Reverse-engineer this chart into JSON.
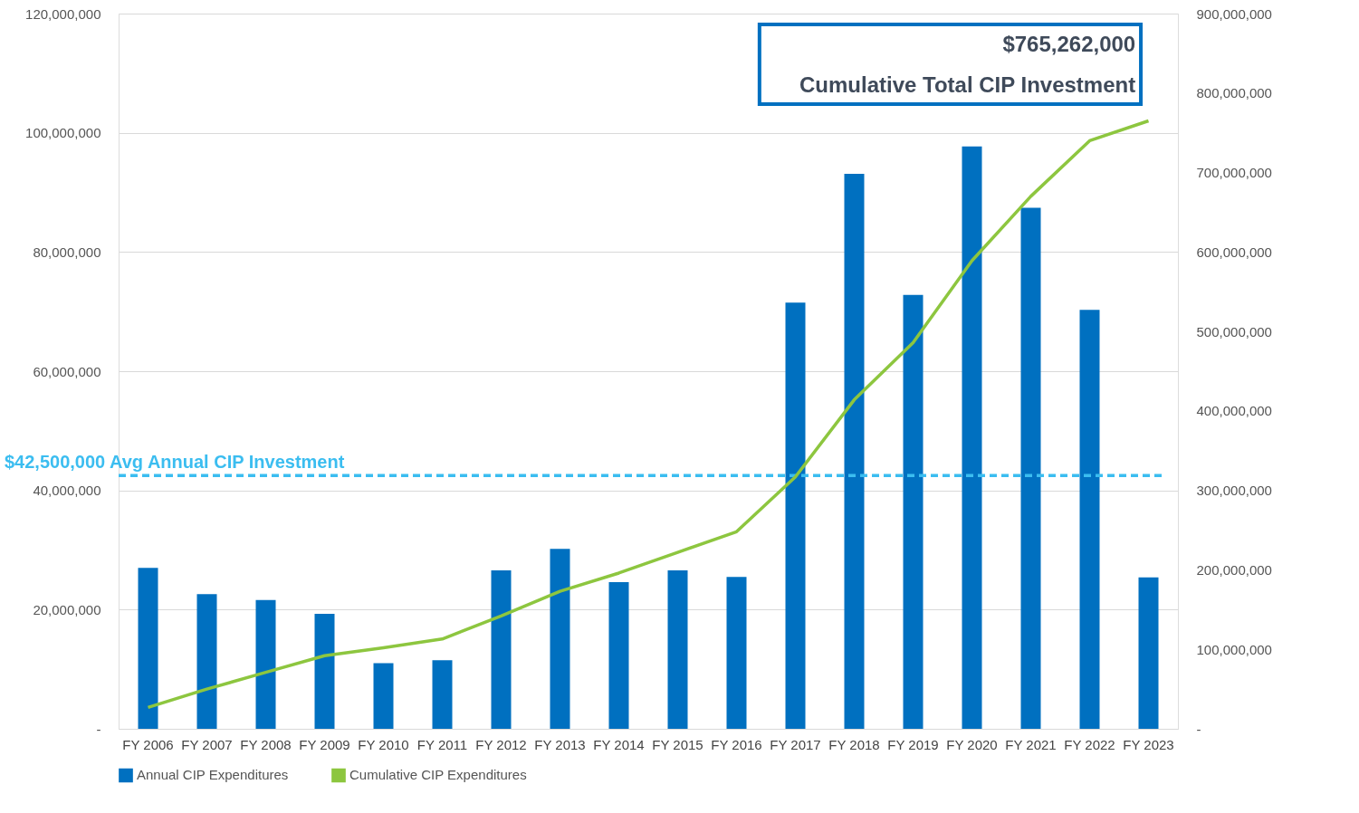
{
  "chart_data": {
    "type": "bar",
    "categories": [
      "FY 2006",
      "FY 2007",
      "FY 2008",
      "FY 2009",
      "FY 2010",
      "FY 2011",
      "FY 2012",
      "FY 2013",
      "FY 2014",
      "FY 2015",
      "FY 2016",
      "FY 2017",
      "FY 2018",
      "FY 2019",
      "FY 2020",
      "FY 2021",
      "FY 2022",
      "FY 2023"
    ],
    "series": [
      {
        "name": "Annual CIP  Expenditures",
        "color": "#0070c0",
        "values": [
          27000000,
          22600000,
          21600000,
          19300000,
          11000000,
          11500000,
          26600000,
          30200000,
          24600000,
          26600000,
          25500000,
          71500000,
          93100000,
          72800000,
          97700000,
          87400000,
          70300000,
          25400000
        ]
      },
      {
        "name": "Cumulative CIP Expenditures",
        "type": "line",
        "axis": "y2",
        "color": "#8dc63f",
        "values": [
          27000000,
          50000000,
          71000000,
          92000000,
          102000000,
          113000000,
          142000000,
          173000000,
          196000000,
          222000000,
          248000000,
          317000000,
          414000000,
          486000000,
          589000000,
          670000000,
          740000000,
          765000000
        ]
      }
    ],
    "ylim": [
      0,
      120000000
    ],
    "yticks": [
      {
        "value": 0,
        "label": "-"
      },
      {
        "value": 20000000,
        "label": "20,000,000"
      },
      {
        "value": 40000000,
        "label": "40,000,000"
      },
      {
        "value": 60000000,
        "label": "60,000,000"
      },
      {
        "value": 80000000,
        "label": "80,000,000"
      },
      {
        "value": 100000000,
        "label": "100,000,000"
      },
      {
        "value": 120000000,
        "label": "120,000,000"
      }
    ],
    "y2lim": [
      0,
      900000000
    ],
    "y2ticks": [
      {
        "value": 0,
        "label": "-"
      },
      {
        "value": 100000000,
        "label": "100,000,000"
      },
      {
        "value": 200000000,
        "label": "200,000,000"
      },
      {
        "value": 300000000,
        "label": "300,000,000"
      },
      {
        "value": 400000000,
        "label": "400,000,000"
      },
      {
        "value": 500000000,
        "label": "500,000,000"
      },
      {
        "value": 600000000,
        "label": "600,000,000"
      },
      {
        "value": 700000000,
        "label": "700,000,000"
      },
      {
        "value": 800000000,
        "label": "800,000,000"
      },
      {
        "value": 900000000,
        "label": "900,000,000"
      }
    ],
    "ref_lines": [
      {
        "axis": "y",
        "value": 42500000,
        "label": "$42,500,000 Avg Annual CIP Investment",
        "color": "#3bbdf0",
        "line_style": "dashed"
      }
    ],
    "annotations": [
      "$765,262,000",
      "Cumulative Total CIP Investment"
    ],
    "grid": "y",
    "legend": "bottom",
    "line_style": "solid",
    "marker": "none"
  }
}
